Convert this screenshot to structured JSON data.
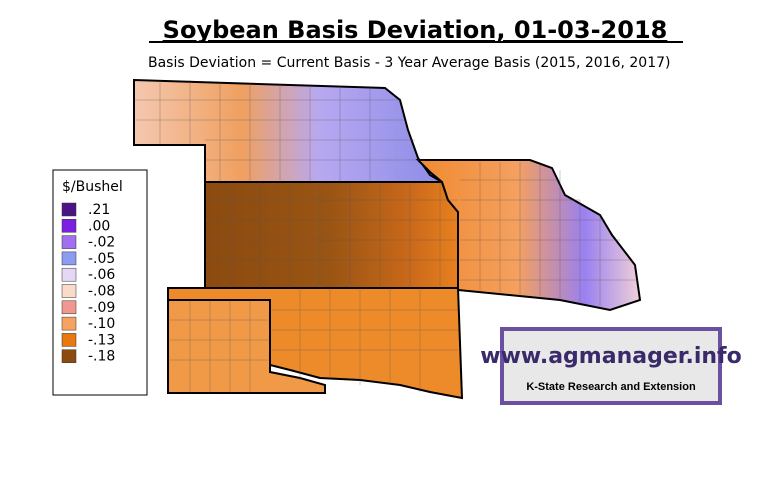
{
  "header": {
    "title": "Soybean Basis Deviation, 01-03-2018",
    "subtitle": "Basis Deviation = Current Basis - 3 Year Average Basis (2015, 2016, 2017)"
  },
  "legend": {
    "title": "$/Bushel",
    "items": [
      {
        "label": ".21",
        "color": "#4a1486"
      },
      {
        "label": ".00",
        "color": "#7b1fe0"
      },
      {
        "label": "-.02",
        "color": "#a070f0"
      },
      {
        "label": "-.05",
        "color": "#8c9cf0"
      },
      {
        "label": "-.06",
        "color": "#e4d8f4"
      },
      {
        "label": "-.08",
        "color": "#f8dcc8"
      },
      {
        "label": "-.09",
        "color": "#f09890"
      },
      {
        "label": "-.10",
        "color": "#f4a460"
      },
      {
        "label": "-.13",
        "color": "#e8780f"
      },
      {
        "label": "-.18",
        "color": "#8b4a10"
      }
    ]
  },
  "logo": {
    "url": "www.agmanager.info",
    "org": "K-State Research and Extension"
  }
}
